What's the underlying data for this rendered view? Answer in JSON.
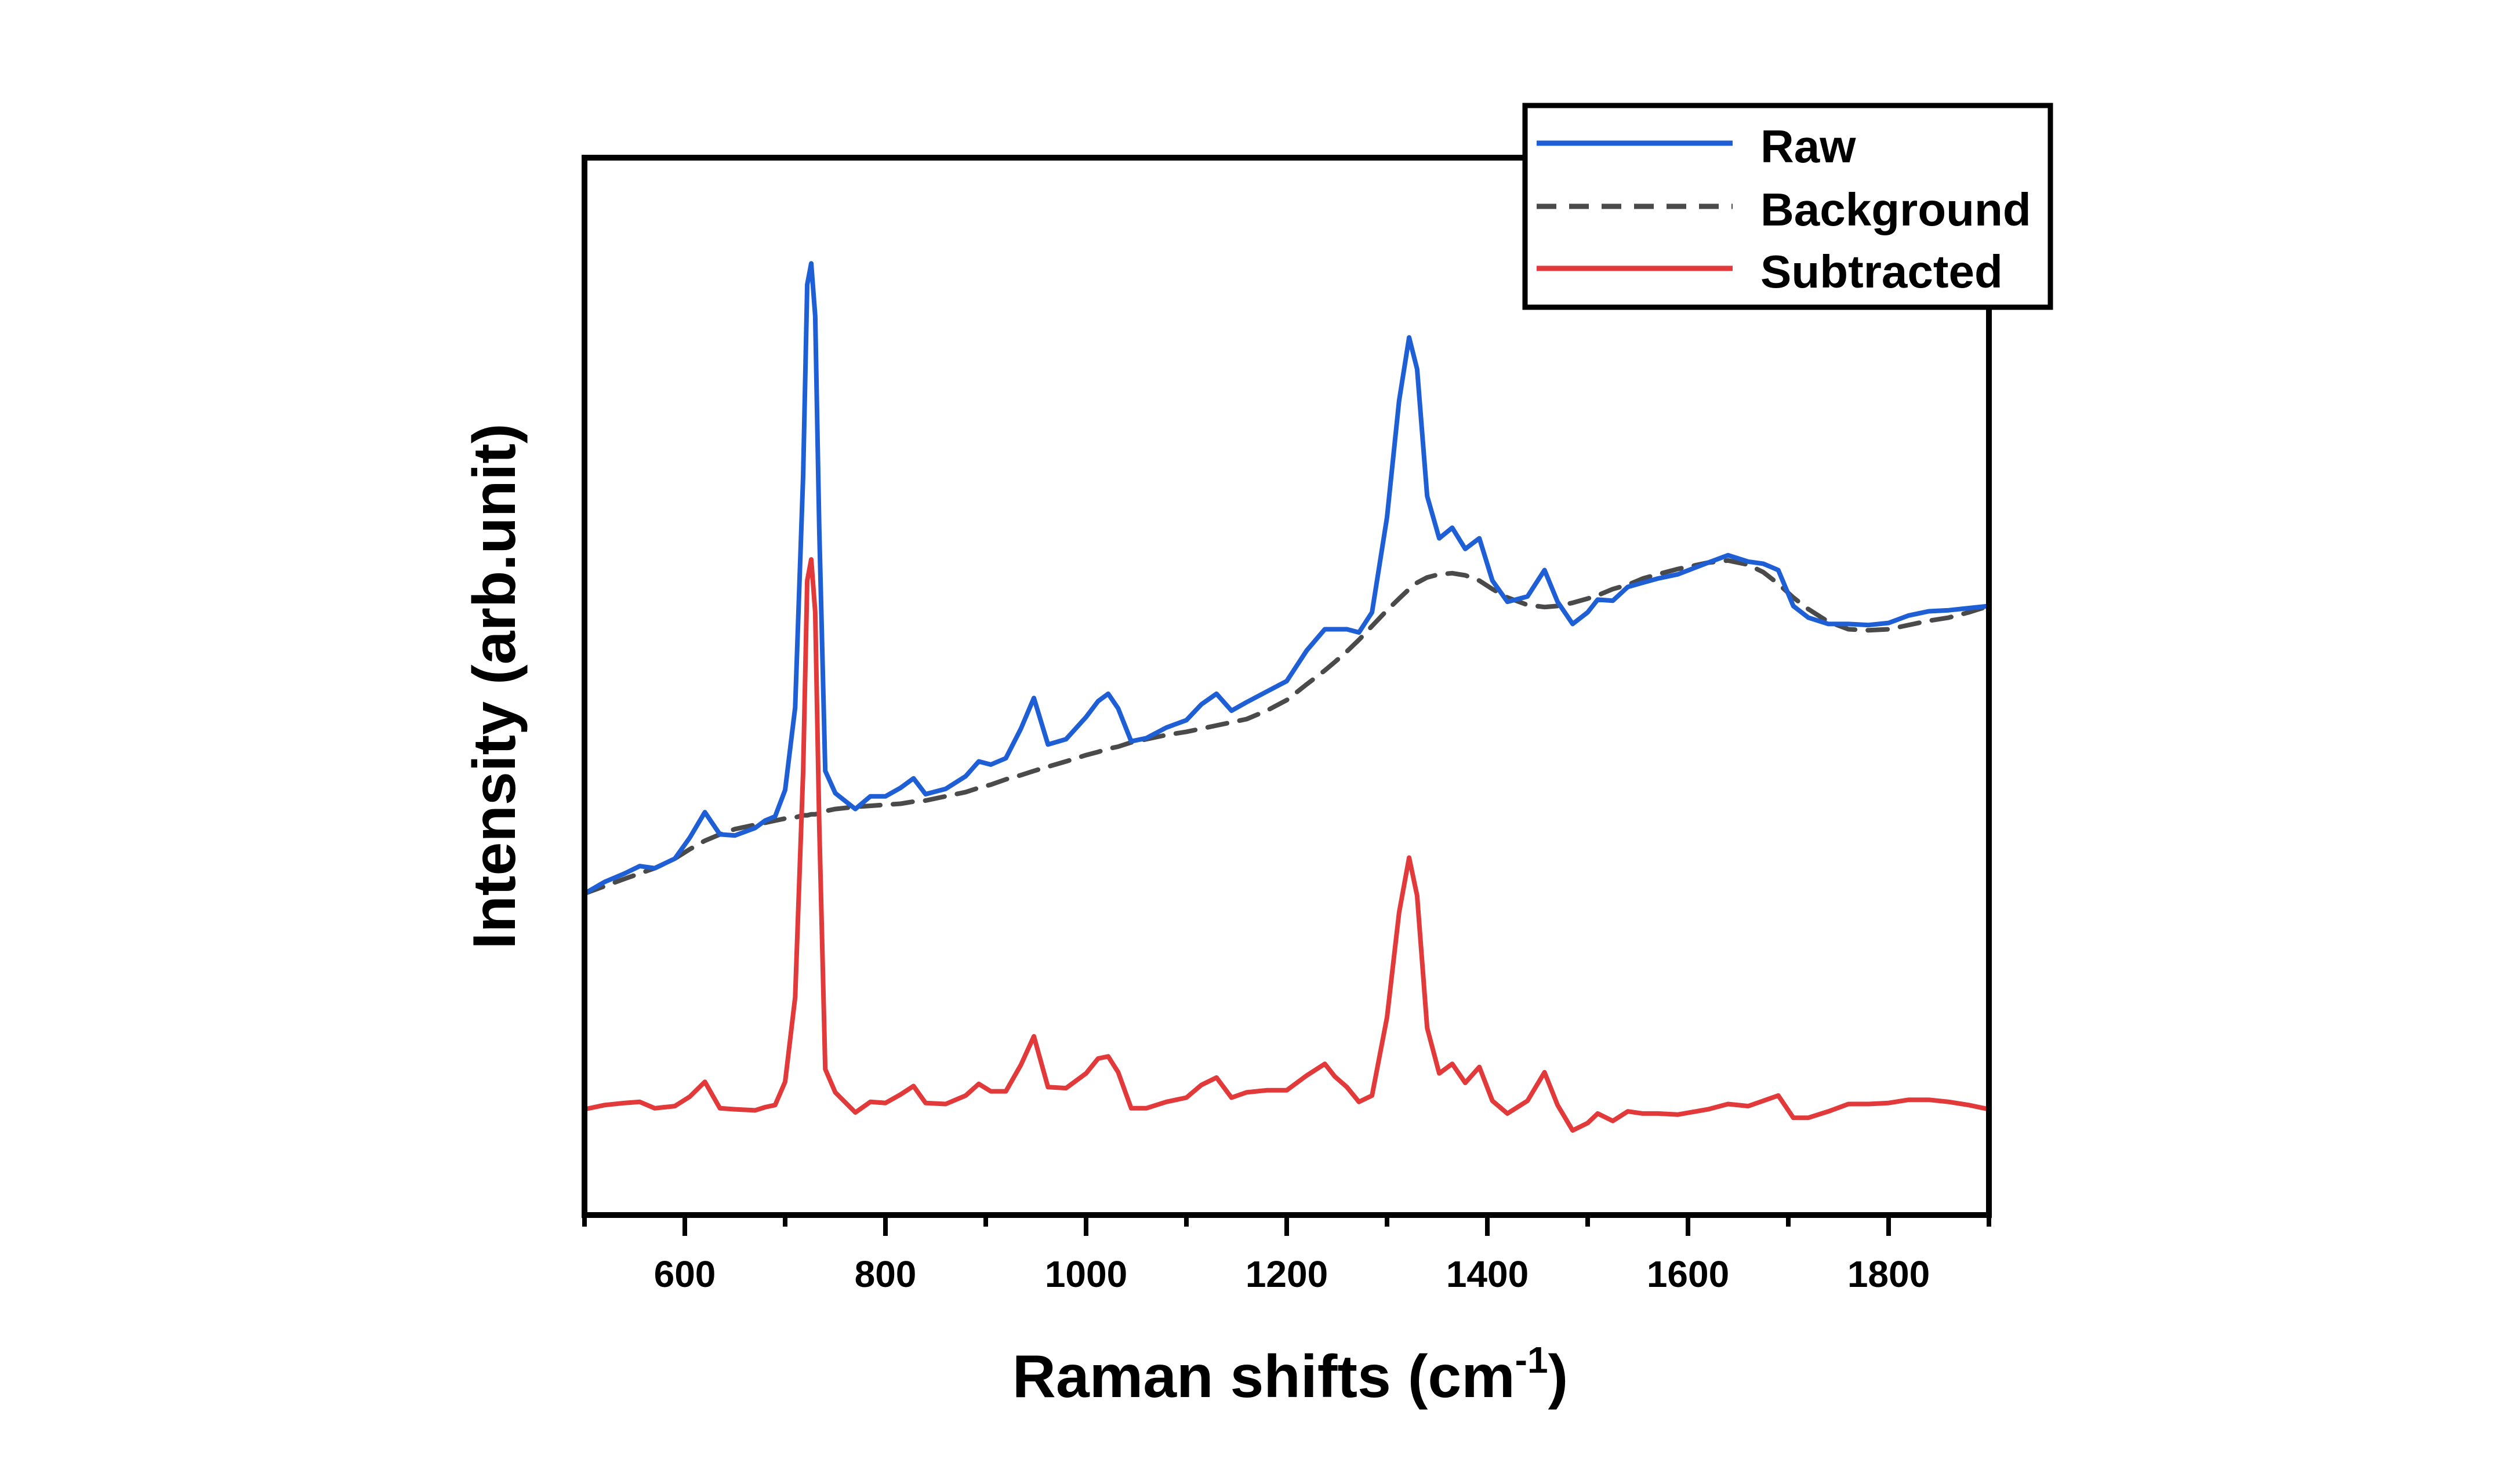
{
  "chart_data": {
    "type": "line",
    "title": "",
    "xlabel": "Raman shifts (cm",
    "xlabel_superscript": "-1",
    "xlabel_close": ")",
    "ylabel": "Intensity (arb.unit)",
    "xlim": [
      500,
      1900
    ],
    "ylim": [
      0,
      100
    ],
    "y_ticks_labeled": false,
    "grid": false,
    "legend_position": "top-right",
    "x_ticks_major": [
      600,
      800,
      1000,
      1200,
      1400,
      1600,
      1800
    ],
    "x_ticks_minor": [
      500,
      700,
      900,
      1100,
      1300,
      1500,
      1700,
      1900
    ],
    "x": [
      500,
      520,
      540,
      555,
      570,
      590,
      605,
      620,
      635,
      650,
      670,
      680,
      690,
      700,
      710,
      718,
      722,
      726,
      730,
      734,
      740,
      750,
      770,
      785,
      800,
      815,
      828,
      840,
      860,
      880,
      893,
      905,
      920,
      935,
      948,
      962,
      980,
      1000,
      1012,
      1022,
      1032,
      1045,
      1060,
      1080,
      1100,
      1115,
      1130,
      1145,
      1160,
      1180,
      1200,
      1220,
      1238,
      1248,
      1260,
      1272,
      1285,
      1300,
      1312,
      1322,
      1330,
      1340,
      1352,
      1365,
      1378,
      1392,
      1405,
      1420,
      1440,
      1457,
      1470,
      1485,
      1500,
      1510,
      1525,
      1540,
      1555,
      1570,
      1590,
      1620,
      1640,
      1660,
      1675,
      1690,
      1705,
      1720,
      1740,
      1760,
      1780,
      1800,
      1820,
      1840,
      1860,
      1880,
      1900
    ],
    "series": [
      {
        "name": "Raw",
        "color": "#1f5fd6",
        "style": "solid",
        "values": [
          30.4,
          31.5,
          32.3,
          33.0,
          32.8,
          33.7,
          35.7,
          38.1,
          36.0,
          35.9,
          36.6,
          37.3,
          37.7,
          40.2,
          48.0,
          70.0,
          88.0,
          90.0,
          85.0,
          65.0,
          42.0,
          39.9,
          38.4,
          39.6,
          39.6,
          40.4,
          41.3,
          39.8,
          40.3,
          41.5,
          42.9,
          42.6,
          43.2,
          46.0,
          48.9,
          44.5,
          45.0,
          47.1,
          48.6,
          49.3,
          47.9,
          44.8,
          45.1,
          46.1,
          46.8,
          48.3,
          49.3,
          47.7,
          48.5,
          49.5,
          50.5,
          53.4,
          55.4,
          55.4,
          55.4,
          55.1,
          57.0,
          66.0,
          77.0,
          83.0,
          80.0,
          68.0,
          64.0,
          65.0,
          63.0,
          64.0,
          60.0,
          58.0,
          58.5,
          61.0,
          58.0,
          55.9,
          57.0,
          58.2,
          58.1,
          59.4,
          59.8,
          60.2,
          60.6,
          61.7,
          62.4,
          61.8,
          61.6,
          61.0,
          57.6,
          56.5,
          55.9,
          55.9,
          55.8,
          56.0,
          56.7,
          57.1,
          57.2,
          57.4,
          57.6
        ]
      },
      {
        "name": "Background",
        "color": "#4a4a4a",
        "style": "dashed",
        "values": [
          30.4,
          31.1,
          31.8,
          32.3,
          32.8,
          33.7,
          34.6,
          35.4,
          36.0,
          36.5,
          36.9,
          37.1,
          37.3,
          37.5,
          37.6,
          37.8,
          37.8,
          37.9,
          37.9,
          38.0,
          38.2,
          38.4,
          38.6,
          38.7,
          38.8,
          38.9,
          39.1,
          39.2,
          39.6,
          40.0,
          40.4,
          40.7,
          41.2,
          41.6,
          42.0,
          42.4,
          42.9,
          43.5,
          43.8,
          44.1,
          44.3,
          44.7,
          45.0,
          45.4,
          45.7,
          46.0,
          46.3,
          46.6,
          46.9,
          47.7,
          48.7,
          50.2,
          51.5,
          52.3,
          53.3,
          54.4,
          55.7,
          57.2,
          58.3,
          59.2,
          59.8,
          60.3,
          60.6,
          60.7,
          60.5,
          60.0,
          59.2,
          58.4,
          57.7,
          57.5,
          57.6,
          57.9,
          58.3,
          58.6,
          59.2,
          59.6,
          60.2,
          60.6,
          61.1,
          61.7,
          61.9,
          61.5,
          60.8,
          59.7,
          58.4,
          57.3,
          56.1,
          55.4,
          55.3,
          55.4,
          55.8,
          56.2,
          56.5,
          57.0,
          57.6
        ]
      },
      {
        "name": "Subtracted",
        "color": "#e23a3a",
        "style": "solid",
        "values": [
          10.0,
          10.4,
          10.6,
          10.7,
          10.1,
          10.3,
          11.2,
          12.6,
          10.1,
          10.0,
          9.9,
          10.2,
          10.4,
          12.6,
          20.6,
          42.0,
          60.0,
          62.0,
          57.0,
          37.0,
          13.8,
          11.6,
          9.7,
          10.7,
          10.6,
          11.4,
          12.2,
          10.6,
          10.5,
          11.3,
          12.4,
          11.7,
          11.7,
          14.2,
          16.9,
          12.1,
          12.0,
          13.4,
          14.8,
          15.0,
          13.5,
          10.1,
          10.1,
          10.7,
          11.1,
          12.3,
          13.0,
          11.1,
          11.6,
          11.8,
          11.8,
          13.2,
          14.3,
          13.1,
          12.1,
          10.7,
          11.3,
          18.7,
          28.6,
          33.8,
          30.2,
          17.7,
          13.4,
          14.3,
          12.5,
          14.0,
          10.8,
          9.6,
          10.8,
          13.5,
          10.4,
          8.0,
          8.7,
          9.6,
          8.9,
          9.8,
          9.6,
          9.6,
          9.5,
          10.0,
          10.5,
          10.3,
          10.8,
          11.3,
          9.2,
          9.2,
          9.8,
          10.5,
          10.5,
          10.6,
          10.9,
          10.9,
          10.7,
          10.4,
          10.0
        ]
      }
    ]
  }
}
